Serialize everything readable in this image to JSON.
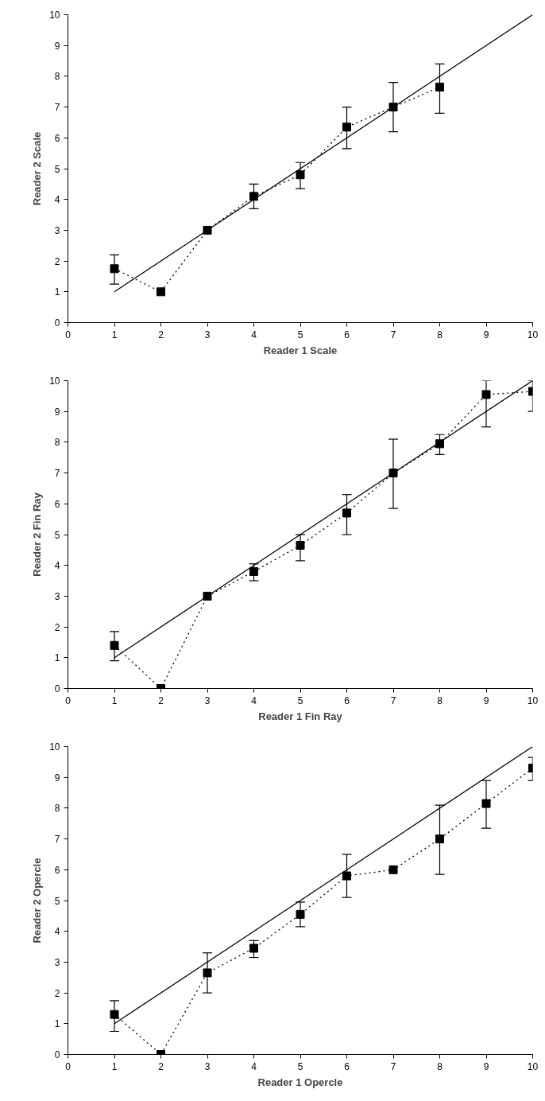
{
  "chart_data": [
    {
      "type": "line",
      "xlabel": "Reader 1 Scale",
      "ylabel": "Reader 2 Scale",
      "xlim": [
        0,
        10
      ],
      "ylim": [
        0,
        10
      ],
      "xticks": [
        0,
        1,
        2,
        3,
        4,
        5,
        6,
        7,
        8,
        9,
        10
      ],
      "yticks": [
        0,
        1,
        2,
        3,
        4,
        5,
        6,
        7,
        8,
        9,
        10
      ],
      "series": [
        {
          "color": "#000000",
          "marker": "square",
          "line_style": "dotted",
          "x": [
            1,
            2,
            3,
            4,
            5,
            6,
            7,
            8
          ],
          "values": [
            1.75,
            1.0,
            3.0,
            4.1,
            4.8,
            6.35,
            7.0,
            7.65
          ],
          "errors": [
            [
              1.25,
              2.2
            ],
            null,
            null,
            [
              3.7,
              4.5
            ],
            [
              4.35,
              5.2
            ],
            [
              5.65,
              7.0
            ],
            [
              6.2,
              7.8
            ],
            [
              6.8,
              8.4
            ]
          ]
        },
        {
          "color": "#000000",
          "marker": "none",
          "line_style": "solid",
          "x": [
            1,
            10
          ],
          "values": [
            1,
            10
          ]
        }
      ]
    },
    {
      "type": "line",
      "xlabel": "Reader 1 Fin Ray",
      "ylabel": "Reader 2 Fin Ray",
      "xlim": [
        0,
        10
      ],
      "ylim": [
        0,
        10
      ],
      "xticks": [
        0,
        1,
        2,
        3,
        4,
        5,
        6,
        7,
        8,
        9,
        10
      ],
      "yticks": [
        0,
        1,
        2,
        3,
        4,
        5,
        6,
        7,
        8,
        9,
        10
      ],
      "series": [
        {
          "color": "#000000",
          "marker": "square",
          "line_style": "dotted",
          "x": [
            1,
            2,
            3,
            4,
            5,
            6,
            7,
            8,
            9,
            10
          ],
          "values": [
            1.4,
            0,
            3.0,
            3.8,
            4.65,
            5.7,
            7.0,
            7.95,
            9.55,
            9.65
          ],
          "errors": [
            [
              0.9,
              1.85
            ],
            null,
            null,
            [
              3.5,
              4.05
            ],
            [
              4.15,
              5.0
            ],
            [
              5.0,
              6.3
            ],
            [
              5.85,
              8.1
            ],
            [
              7.6,
              8.25
            ],
            [
              8.5,
              10
            ],
            [
              9.0,
              10
            ]
          ]
        },
        {
          "color": "#000000",
          "marker": "none",
          "line_style": "solid",
          "x": [
            1,
            10
          ],
          "values": [
            1,
            10
          ]
        }
      ]
    },
    {
      "type": "line",
      "xlabel": "Reader 1 Opercle",
      "ylabel": "Reader 2 Opercle",
      "xlim": [
        0,
        10
      ],
      "ylim": [
        0,
        10
      ],
      "xticks": [
        0,
        1,
        2,
        3,
        4,
        5,
        6,
        7,
        8,
        9,
        10
      ],
      "yticks": [
        0,
        1,
        2,
        3,
        4,
        5,
        6,
        7,
        8,
        9,
        10
      ],
      "series": [
        {
          "color": "#000000",
          "marker": "square",
          "line_style": "dotted",
          "x": [
            1,
            2,
            3,
            4,
            5,
            6,
            7,
            8,
            9,
            10
          ],
          "values": [
            1.3,
            0,
            2.65,
            3.45,
            4.55,
            5.8,
            6.0,
            7.0,
            8.15,
            9.3
          ],
          "errors": [
            [
              0.75,
              1.75
            ],
            null,
            [
              2.0,
              3.3
            ],
            [
              3.15,
              3.7
            ],
            [
              4.15,
              4.95
            ],
            [
              5.1,
              6.5
            ],
            null,
            [
              5.85,
              8.1
            ],
            [
              7.35,
              8.9
            ],
            [
              8.9,
              9.65
            ]
          ]
        },
        {
          "color": "#000000",
          "marker": "none",
          "line_style": "solid",
          "x": [
            1,
            10
          ],
          "values": [
            1,
            10
          ]
        }
      ]
    }
  ]
}
